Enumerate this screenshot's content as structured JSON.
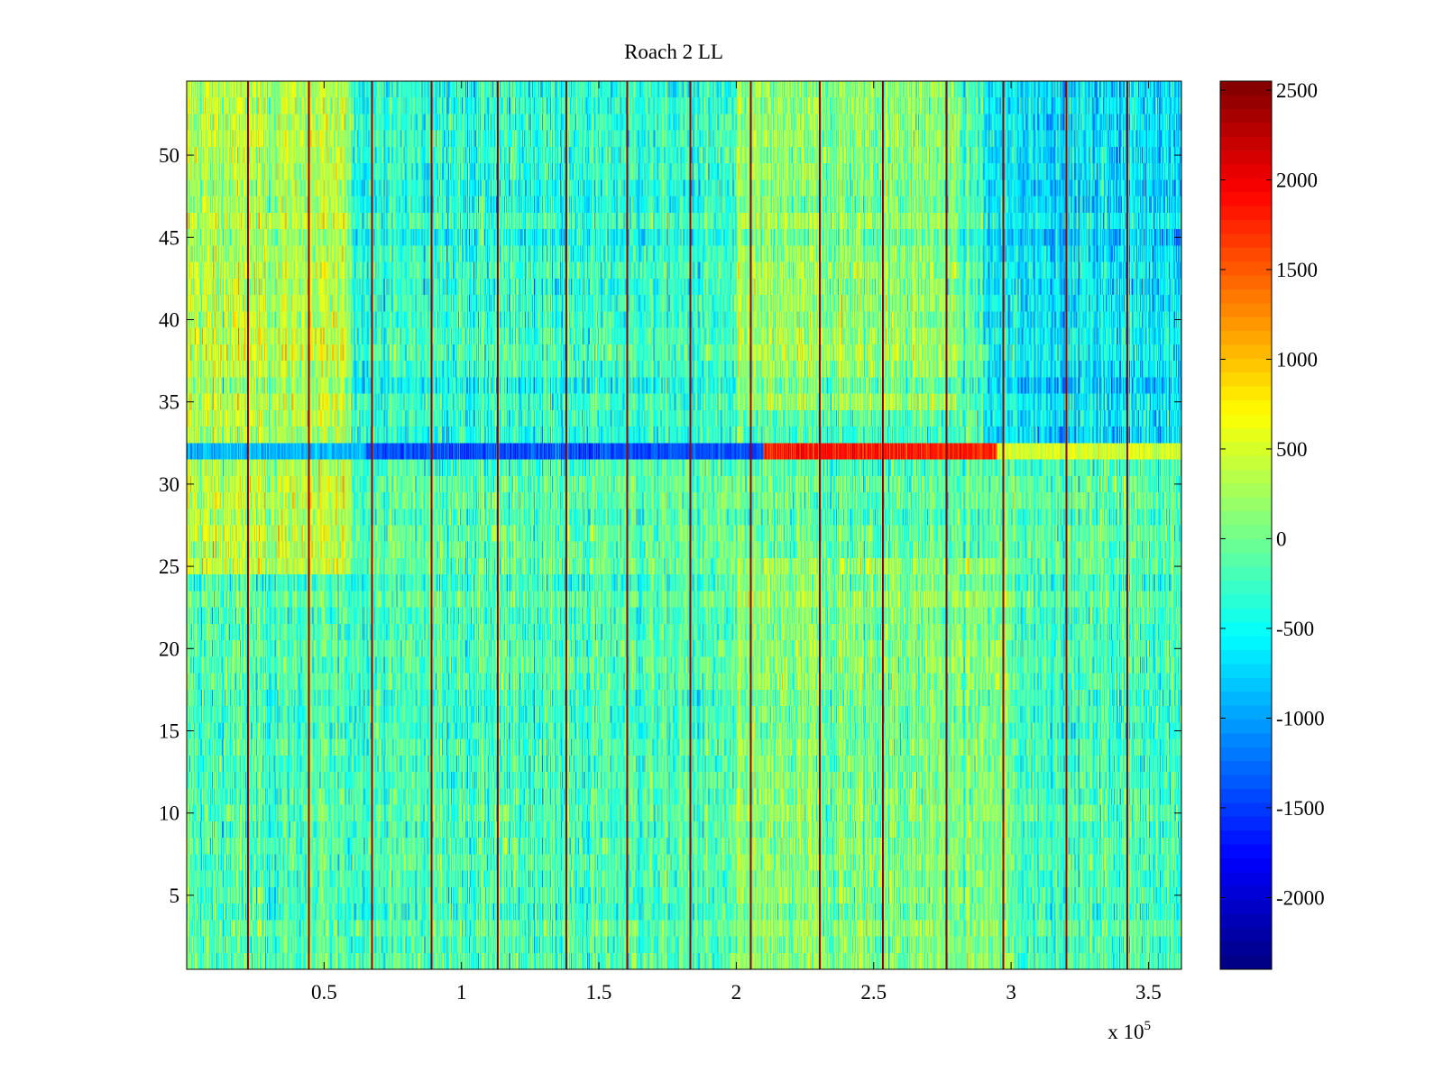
{
  "chart_data": {
    "type": "heatmap",
    "title": "Roach 2 LL",
    "xlabel": "",
    "ylabel": "",
    "x_multiplier_label": "x 10",
    "x_multiplier_exponent": "5",
    "xlim": [
      0.5,
      362000
    ],
    "ylim": [
      0.5,
      54.5
    ],
    "x_ticks": [
      0.5,
      1,
      1.5,
      2,
      2.5,
      3,
      3.5
    ],
    "x_tick_labels": [
      "0.5",
      "1",
      "1.5",
      "2",
      "2.5",
      "3",
      "3.5"
    ],
    "y_ticks": [
      5,
      10,
      15,
      20,
      25,
      30,
      35,
      40,
      45,
      50
    ],
    "y_tick_labels": [
      "5",
      "10",
      "15",
      "20",
      "25",
      "30",
      "35",
      "40",
      "45",
      "50"
    ],
    "rows": 54,
    "colormap": "jet",
    "clim": [
      -2400,
      2550
    ],
    "colorbar_ticks": [
      2500,
      2000,
      1500,
      1000,
      500,
      0,
      -500,
      -1000,
      -1500,
      -2000
    ],
    "colorbar_tick_labels": [
      "2500",
      "2000",
      "1500",
      "1000",
      "500",
      "0",
      "-500",
      "-1000",
      "-1500",
      "-2000"
    ],
    "typical_value_range": [
      -1200,
      1200
    ],
    "vertical_stripes_x": [
      22000,
      44000,
      67000,
      89000,
      113000,
      138000,
      160000,
      183000,
      205000,
      230000,
      253000,
      276000,
      297000,
      320000,
      342000
    ],
    "stripe_value": 2300,
    "anomaly_row": {
      "row": 32,
      "segments": [
        {
          "x_start": 0,
          "x_end": 65000,
          "value": -900
        },
        {
          "x_start": 65000,
          "x_end": 210000,
          "value": -1400
        },
        {
          "x_start": 210000,
          "x_end": 295000,
          "value": 1800
        },
        {
          "x_start": 295000,
          "x_end": 362000,
          "value": 500
        }
      ]
    },
    "warm_regions": [
      {
        "x_start": 0,
        "x_end": 60000,
        "y_start": 25,
        "y_end": 54,
        "offset": 500
      },
      {
        "x_start": 200000,
        "x_end": 280000,
        "y_start": 35,
        "y_end": 54,
        "offset": 300
      },
      {
        "x_start": 200000,
        "x_end": 300000,
        "y_start": 1,
        "y_end": 25,
        "offset": 250
      }
    ],
    "cool_regions": [
      {
        "x_start": 290000,
        "x_end": 362000,
        "y_start": 33,
        "y_end": 54,
        "offset": -450
      },
      {
        "x_start": 60000,
        "x_end": 200000,
        "y_start": 33,
        "y_end": 54,
        "offset": -150
      }
    ]
  }
}
